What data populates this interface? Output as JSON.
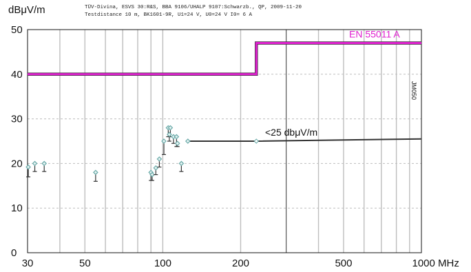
{
  "header": {
    "line1": "TÜV-Divina, ESVS 30:R&S, BBA 9106/UHALP 9107:Schwarzb., QP, 2009-11-20",
    "line2": "Testdistance 10 m, BK1601-9R, U1=24 V, U0=24 V I0= 6 A"
  },
  "vertical_id": "JM050",
  "chart_data": {
    "type": "scatter",
    "title": "",
    "ylabel": "dBμV/m",
    "xlabel": "MHz",
    "x_scale": "log",
    "xlim": [
      30,
      1000
    ],
    "ylim": [
      0,
      50
    ],
    "y_ticks": [
      "0",
      "10",
      "20",
      "30",
      "40",
      "50"
    ],
    "x_ticks": [
      {
        "value": 30,
        "label": "30"
      },
      {
        "value": 50,
        "label": "50"
      },
      {
        "value": 100,
        "label": "100"
      },
      {
        "value": 200,
        "label": "200"
      },
      {
        "value": 500,
        "label": "500"
      },
      {
        "value": 1000,
        "label": "1000 MHz"
      }
    ],
    "grid": true,
    "colors": {
      "limit": "#e020d0",
      "measured_line": "#333333",
      "points": "#6aaaa8"
    },
    "limit_line": {
      "name": "EN 55011 A",
      "segments": [
        {
          "x": [
            30,
            230
          ],
          "y": 40
        },
        {
          "x": [
            230,
            1000
          ],
          "y": 47
        }
      ]
    },
    "measured_line": {
      "label": "<25 dbμV/m",
      "x": [
        125,
        230,
        1000
      ],
      "y": [
        25.0,
        25.0,
        25.5
      ]
    },
    "points": [
      {
        "x": 30.2,
        "y": 19.2,
        "lo": 17.0
      },
      {
        "x": 32.0,
        "y": 20.0,
        "lo": 18.2
      },
      {
        "x": 34.8,
        "y": 20.0,
        "lo": 18.2
      },
      {
        "x": 55.0,
        "y": 18.0,
        "lo": 16.0
      },
      {
        "x": 90.0,
        "y": 18.0,
        "lo": 16.2
      },
      {
        "x": 91.0,
        "y": 17.5,
        "lo": 16.2
      },
      {
        "x": 94.0,
        "y": 19.0,
        "lo": 17.5
      },
      {
        "x": 97.0,
        "y": 21.0,
        "lo": 19.2
      },
      {
        "x": 101.0,
        "y": 25.0,
        "lo": 22.0
      },
      {
        "x": 105.0,
        "y": 28.0,
        "lo": 26.0
      },
      {
        "x": 107.0,
        "y": 28.0,
        "lo": 26.0
      },
      {
        "x": 106.0,
        "y": 26.5,
        "lo": 25.0
      },
      {
        "x": 110.0,
        "y": 26.0,
        "lo": 24.5
      },
      {
        "x": 113.0,
        "y": 26.0,
        "lo": 23.8
      },
      {
        "x": 114.0,
        "y": 24.5,
        "lo": 23.8
      },
      {
        "x": 118.0,
        "y": 20.0,
        "lo": 18.2
      },
      {
        "x": 125.0,
        "y": 25.0,
        "lo": 25.0
      }
    ]
  }
}
